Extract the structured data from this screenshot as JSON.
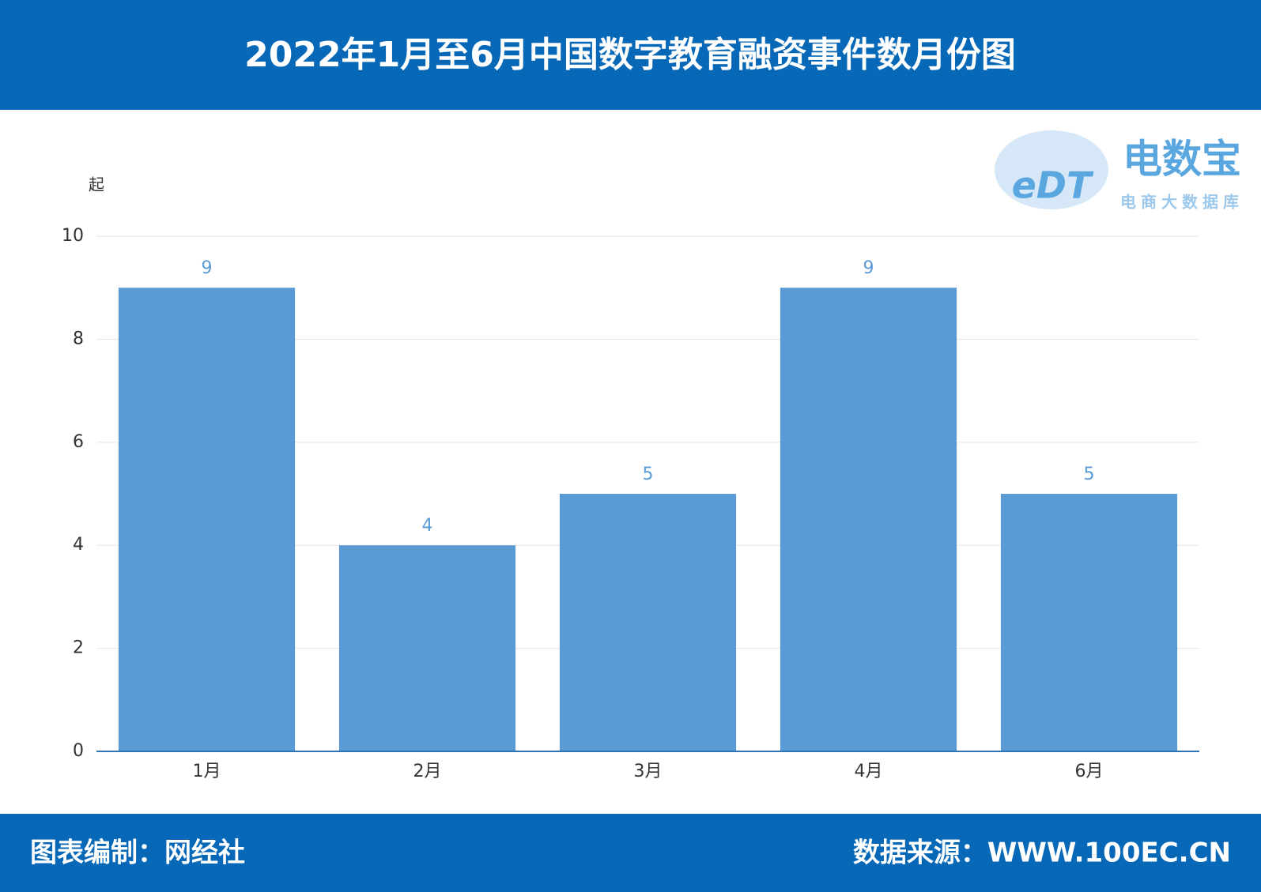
{
  "chart_data": {
    "type": "bar",
    "title": "2022年1月至6月中国数字教育融资事件数月份图",
    "y_label": "起",
    "categories": [
      "1月",
      "2月",
      "3月",
      "4月",
      "6月"
    ],
    "values": [
      9,
      4,
      5,
      9,
      5
    ],
    "color": "#5b9bd5",
    "ylim": [
      0,
      10
    ],
    "yticks": [
      0,
      2,
      4,
      6,
      8,
      10
    ],
    "grid": true
  },
  "logo": {
    "mark": "eDT",
    "name": "电数宝",
    "subtitle": "电商大数据库"
  },
  "footer": {
    "credit": "图表编制：网经社",
    "source": "数据来源：WWW.100EC.CN"
  }
}
